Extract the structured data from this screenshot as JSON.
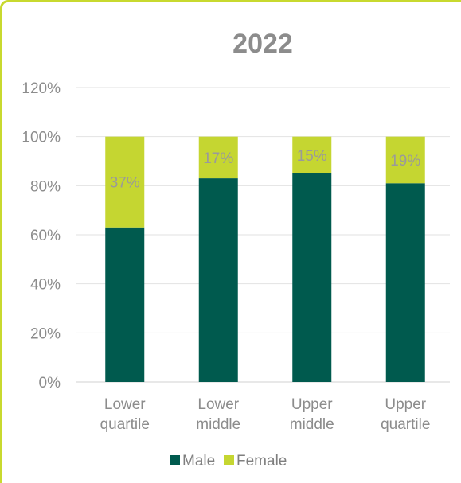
{
  "chart_data": {
    "type": "bar",
    "stacked": true,
    "title": "2022",
    "categories": [
      [
        "Lower",
        "quartile"
      ],
      [
        "Lower",
        "middle"
      ],
      [
        "Upper",
        "middle"
      ],
      [
        "Upper",
        "quartile"
      ]
    ],
    "series": [
      {
        "name": "Male",
        "values": [
          63,
          83,
          85,
          81
        ],
        "color": "#005a4e"
      },
      {
        "name": "Female",
        "values": [
          37,
          17,
          15,
          19
        ],
        "color": "#c5d631"
      }
    ],
    "data_labels": [
      "37%",
      "17%",
      "15%",
      "19%"
    ],
    "ylim": [
      0,
      120
    ],
    "yticks": [
      "0%",
      "20%",
      "40%",
      "60%",
      "80%",
      "100%",
      "120%"
    ],
    "ytick_values": [
      0,
      20,
      40,
      60,
      80,
      100,
      120
    ],
    "grid": true,
    "legend_position": "bottom"
  }
}
